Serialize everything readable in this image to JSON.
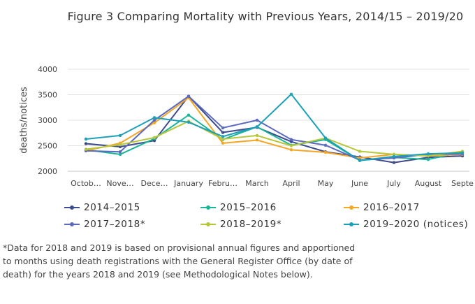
{
  "chart_data": {
    "type": "line",
    "title": "Figure 3 Comparing Mortality with Previous Years, 2014/15 – 2019/20",
    "ylabel": "deaths/notices",
    "xlabel": "",
    "ylim": [
      2000,
      4000
    ],
    "yticks": [
      2000,
      2500,
      3000,
      3500,
      4000
    ],
    "grid": "horizontal",
    "legend_position": "bottom",
    "categories": [
      "Octob…",
      "Nove…",
      "Dece…",
      "January",
      "Febru…",
      "March",
      "April",
      "May",
      "June",
      "July",
      "August",
      "Septe"
    ],
    "series": [
      {
        "name": "2014–2015",
        "color": "#3c4a8e",
        "values": [
          2540,
          2480,
          2600,
          3470,
          2760,
          2860,
          2580,
          2380,
          2280,
          2170,
          2270,
          2300
        ]
      },
      {
        "name": "2015–2016",
        "color": "#1bb59a",
        "values": [
          2420,
          2330,
          2640,
          3100,
          2620,
          2870,
          2510,
          2620,
          2210,
          2270,
          2230,
          2380
        ]
      },
      {
        "name": "2016–2017",
        "color": "#f5a623",
        "values": [
          2400,
          2550,
          2950,
          3440,
          2550,
          2610,
          2420,
          2370,
          2260,
          2330,
          2300,
          2330
        ]
      },
      {
        "name": "2017–2018*",
        "color": "#5b6abf",
        "values": [
          2400,
          2380,
          3000,
          3470,
          2850,
          3000,
          2620,
          2510,
          2220,
          2260,
          2330,
          2340
        ]
      },
      {
        "name": "2018–2019*",
        "color": "#b7c73c",
        "values": [
          2430,
          2520,
          2660,
          2980,
          2630,
          2700,
          2500,
          2650,
          2390,
          2330,
          2300,
          2390
        ]
      },
      {
        "name": "2019–2020 (notices)",
        "color": "#1ca0b7",
        "values": [
          2630,
          2700,
          3050,
          2960,
          2680,
          2870,
          3510,
          2650,
          2210,
          2290,
          2340,
          2360
        ]
      }
    ]
  },
  "footnote": "*Data for 2018 and 2019 is based on provisional annual figures and apportioned to months using death registrations with the General Register Office (by date of death) for the years 2018 and 2019 (see Methodological Notes below)."
}
